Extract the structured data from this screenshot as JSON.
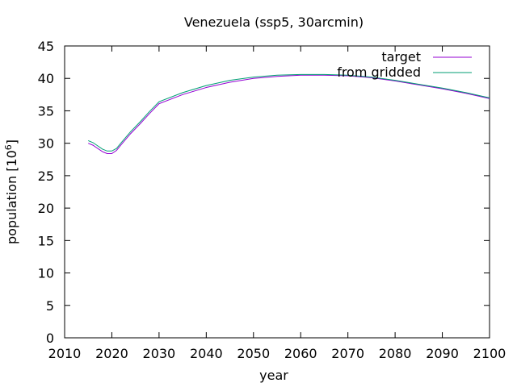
{
  "chart_data": {
    "type": "line",
    "title": "Venezuela (ssp5, 30arcmin)",
    "xlabel": "year",
    "ylabel": "population [10^6]",
    "ylabel_base": "population [10",
    "ylabel_exp": "6",
    "ylabel_tail": "]",
    "xlim": [
      2010,
      2100
    ],
    "ylim": [
      0,
      45
    ],
    "xticks": [
      "2010",
      "2020",
      "2030",
      "2040",
      "2050",
      "2060",
      "2070",
      "2080",
      "2090",
      "2100"
    ],
    "yticks": [
      "0",
      "5",
      "10",
      "15",
      "20",
      "25",
      "30",
      "35",
      "40",
      "45"
    ],
    "grid": false,
    "legend_position": "top-right",
    "series": [
      {
        "name": "target",
        "color": "#9400d3",
        "x": [
          2015,
          2016,
          2017,
          2018,
          2019,
          2020,
          2021,
          2022,
          2024,
          2026,
          2028,
          2030,
          2035,
          2040,
          2045,
          2050,
          2055,
          2060,
          2065,
          2070,
          2075,
          2080,
          2085,
          2090,
          2095,
          2100
        ],
        "y": [
          30.0,
          29.7,
          29.2,
          28.7,
          28.4,
          28.4,
          28.9,
          29.8,
          31.5,
          33.0,
          34.6,
          36.1,
          37.5,
          38.6,
          39.4,
          40.0,
          40.3,
          40.5,
          40.5,
          40.4,
          40.1,
          39.6,
          39.0,
          38.4,
          37.7,
          36.9
        ]
      },
      {
        "name": "from gridded",
        "color": "#009e73",
        "x": [
          2015,
          2016,
          2017,
          2018,
          2019,
          2020,
          2021,
          2022,
          2024,
          2026,
          2028,
          2030,
          2035,
          2040,
          2045,
          2050,
          2055,
          2060,
          2065,
          2070,
          2075,
          2080,
          2085,
          2090,
          2095,
          2100
        ],
        "y": [
          30.4,
          30.1,
          29.6,
          29.1,
          28.8,
          28.8,
          29.2,
          30.1,
          31.8,
          33.3,
          34.9,
          36.4,
          37.8,
          38.9,
          39.7,
          40.2,
          40.5,
          40.6,
          40.6,
          40.5,
          40.2,
          39.7,
          39.1,
          38.5,
          37.8,
          37.0
        ]
      }
    ]
  }
}
